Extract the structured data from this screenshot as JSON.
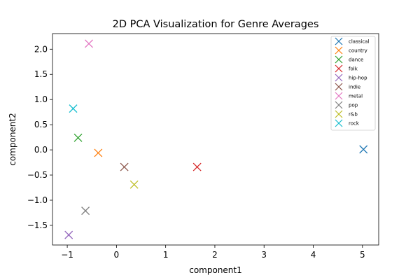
{
  "chart_data": {
    "type": "scatter",
    "title": "2D PCA Visualization for Genre Averages",
    "xlabel": "component1",
    "ylabel": "component2",
    "xlim": [
      -1.3,
      5.33
    ],
    "ylim": [
      -1.89,
      2.31
    ],
    "xticks": [
      -1,
      0,
      1,
      2,
      3,
      4,
      5
    ],
    "yticks": [
      -1.5,
      -1.0,
      -0.5,
      0.0,
      0.5,
      1.0,
      1.5,
      2.0
    ],
    "xtick_labels": [
      "−1",
      "0",
      "1",
      "2",
      "3",
      "4",
      "5"
    ],
    "ytick_labels": [
      "−1.5",
      "−1.0",
      "−0.5",
      "0.0",
      "0.5",
      "1.0",
      "1.5",
      "2.0"
    ],
    "marker": "x",
    "grid": false,
    "legend_position": "top-right",
    "series": [
      {
        "name": "classical",
        "color": "#1f77b4",
        "x": 5.02,
        "y": 0.01
      },
      {
        "name": "country",
        "color": "#ff7f0e",
        "x": -0.37,
        "y": -0.06
      },
      {
        "name": "dance",
        "color": "#2ca02c",
        "x": -0.78,
        "y": 0.24
      },
      {
        "name": "folk",
        "color": "#d62728",
        "x": 1.64,
        "y": -0.34
      },
      {
        "name": "hip-hop",
        "color": "#9467bd",
        "x": -0.97,
        "y": -1.69
      },
      {
        "name": "indie",
        "color": "#8c564b",
        "x": 0.16,
        "y": -0.34
      },
      {
        "name": "metal",
        "color": "#e377c2",
        "x": -0.56,
        "y": 2.11
      },
      {
        "name": "pop",
        "color": "#7f7f7f",
        "x": -0.63,
        "y": -1.21
      },
      {
        "name": "r&b",
        "color": "#bcbd22",
        "x": 0.36,
        "y": -0.69
      },
      {
        "name": "rock",
        "color": "#17becf",
        "x": -0.88,
        "y": 0.82
      }
    ]
  }
}
